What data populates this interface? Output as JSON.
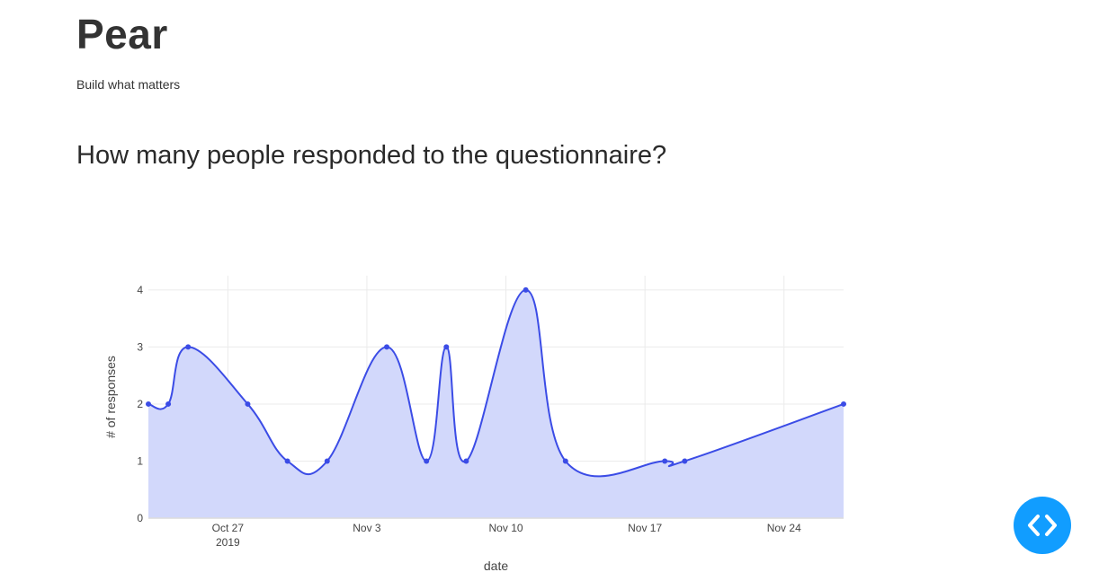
{
  "header": {
    "title": "Pear",
    "tagline": "Build what matters"
  },
  "main": {
    "question": "How many people responded to the questionnaire?"
  },
  "chart_data": {
    "type": "area",
    "title": "",
    "xlabel": "date",
    "ylabel": "# of responses",
    "x_year_label": "2019",
    "x": [
      "2019-10-23",
      "2019-10-24",
      "2019-10-25",
      "2019-10-28",
      "2019-10-30",
      "2019-11-01",
      "2019-11-04",
      "2019-11-06",
      "2019-11-07",
      "2019-11-08",
      "2019-11-11",
      "2019-11-13",
      "2019-11-18",
      "2019-11-19",
      "2019-11-27"
    ],
    "y": [
      2,
      2,
      3,
      2,
      1,
      1,
      3,
      1,
      3,
      1,
      4,
      1,
      1,
      1,
      2
    ],
    "xlim": [
      "2019-10-23",
      "2019-11-27"
    ],
    "ylim": [
      0,
      4.25
    ],
    "x_ticks": [
      {
        "date": "2019-10-27",
        "label": "Oct 27"
      },
      {
        "date": "2019-11-03",
        "label": "Nov 3"
      },
      {
        "date": "2019-11-10",
        "label": "Nov 10"
      },
      {
        "date": "2019-11-17",
        "label": "Nov 17"
      },
      {
        "date": "2019-11-24",
        "label": "Nov 24"
      }
    ],
    "y_ticks": [
      0,
      1,
      2,
      3,
      4
    ],
    "line_shape": "spline",
    "grid": true,
    "legend": "none",
    "colors": {
      "line": "#3b4ce6",
      "fill": "#d2d8fb",
      "grid": "#ebebeb",
      "axis_text": "#444444"
    }
  },
  "code_toggle": {
    "icon": "code-brackets-icon",
    "color": "#119dff"
  }
}
